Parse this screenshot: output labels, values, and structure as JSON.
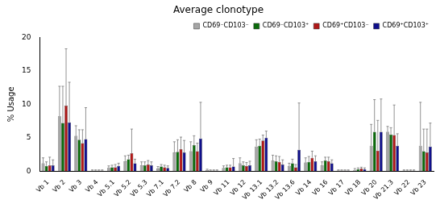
{
  "chart_data": {
    "type": "bar",
    "title": "Average clonotype",
    "y_label": "% Usage",
    "categories": [
      "Vb 1",
      "Vb 2",
      "Vb 3",
      "Vb 4",
      "Vb 5.1",
      "Vb 5.2",
      "Vb 5.3",
      "Vb 7.1",
      "Vb 7.2",
      "Vb 8",
      "Vb 9",
      "Vb 11",
      "Vb 12",
      "Vb 13.1",
      "Vb 13.2",
      "Vb 13.6",
      "Vb 14",
      "Vb 16",
      "Vb 17",
      "Vb 18",
      "Vb 20",
      "Vb 21.3",
      "Vb 22",
      "Vb 23"
    ],
    "series": [
      {
        "name": "CD69⁻CD103⁻",
        "color": "#a6a6a6",
        "values": [
          1.2,
          8.2,
          5.3,
          0.1,
          0.5,
          1.5,
          0.9,
          0.4,
          2.8,
          3.0,
          0.2,
          0.5,
          1.2,
          3.7,
          1.6,
          0.8,
          1.3,
          0.9,
          0.1,
          0.2,
          3.8,
          5.9,
          0.1,
          3.8
        ],
        "errors": [
          0.8,
          4.5,
          1.5,
          0.1,
          0.3,
          0.8,
          0.5,
          0.3,
          1.6,
          1.4,
          0.1,
          0.3,
          0.8,
          1.0,
          0.8,
          0.4,
          0.7,
          0.5,
          0.1,
          0.2,
          3.2,
          0.8,
          0.1,
          6.5
        ]
      },
      {
        "name": "CD69⁻CD103⁺",
        "color": "#0b6b0b",
        "values": [
          0.8,
          7.2,
          4.7,
          0.1,
          0.6,
          1.8,
          0.9,
          0.7,
          2.9,
          3.9,
          0.1,
          0.6,
          0.9,
          3.8,
          1.5,
          1.2,
          1.4,
          1.6,
          0.1,
          0.3,
          5.9,
          5.5,
          0.1,
          3.0
        ],
        "errors": [
          0.6,
          5.5,
          1.5,
          0.1,
          0.3,
          0.6,
          0.5,
          0.3,
          1.8,
          1.4,
          0.1,
          0.3,
          0.5,
          1.0,
          0.8,
          0.6,
          0.8,
          0.5,
          0.1,
          0.2,
          4.8,
          1.0,
          0.1,
          3.3
        ]
      },
      {
        "name": "CD69⁺CD103⁻",
        "color": "#b01818",
        "values": [
          0.9,
          9.8,
          4.2,
          0.1,
          0.6,
          2.7,
          1.0,
          0.6,
          3.3,
          3.0,
          0.1,
          0.6,
          0.8,
          4.6,
          1.4,
          0.6,
          2.0,
          1.5,
          0.1,
          0.4,
          3.1,
          5.4,
          0.1,
          2.8
        ],
        "errors": [
          1.2,
          8.5,
          2.0,
          0.1,
          0.4,
          3.6,
          0.6,
          0.3,
          1.8,
          1.2,
          0.1,
          0.3,
          0.5,
          0.8,
          0.8,
          0.4,
          1.0,
          0.6,
          0.1,
          0.2,
          4.5,
          4.5,
          0.1,
          3.5
        ]
      },
      {
        "name": "CD69⁺CD103⁺",
        "color": "#10108c",
        "values": [
          0.9,
          7.3,
          4.8,
          0.1,
          0.8,
          1.2,
          0.9,
          0.5,
          2.8,
          4.9,
          0.1,
          0.7,
          0.9,
          5.0,
          1.0,
          3.2,
          1.5,
          1.2,
          0.1,
          0.3,
          5.9,
          3.8,
          0.1,
          3.7
        ],
        "errors": [
          0.8,
          6.0,
          4.7,
          0.1,
          0.4,
          0.6,
          0.5,
          0.3,
          1.8,
          5.4,
          0.1,
          1.2,
          0.6,
          1.0,
          0.7,
          7.0,
          0.8,
          0.5,
          0.1,
          0.2,
          4.9,
          1.8,
          0.1,
          3.5
        ]
      }
    ],
    "ylim": [
      0,
      20
    ],
    "yticks": [
      0,
      5,
      10,
      15,
      20
    ],
    "grid": false,
    "legend": "top-right"
  }
}
